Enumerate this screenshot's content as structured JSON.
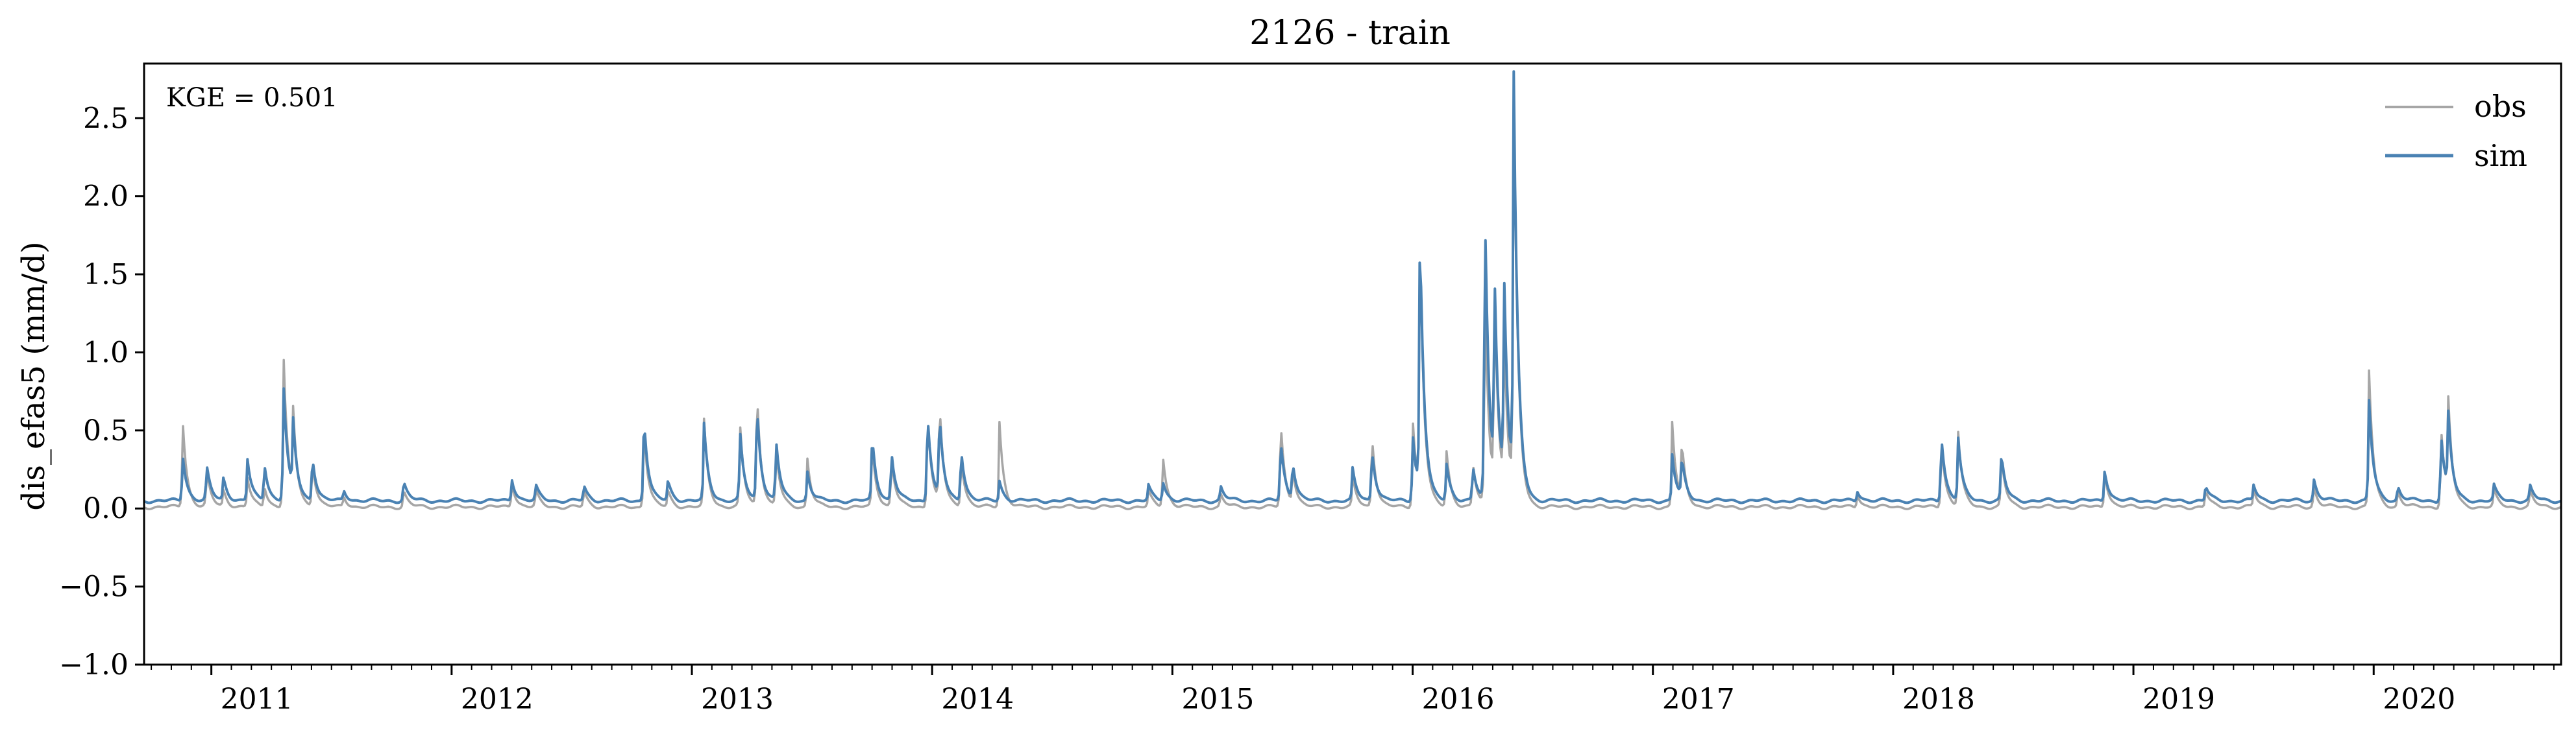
{
  "chart_data": {
    "type": "line",
    "title": "2126 - train",
    "xlabel": "",
    "ylabel": "dis_efas5 (mm/d)",
    "annotation": "KGE = 0.501",
    "xlim": [
      2010.72,
      2020.78
    ],
    "ylim": [
      -1.0,
      2.85
    ],
    "x_ticks": [
      2011,
      2012,
      2013,
      2014,
      2015,
      2016,
      2017,
      2018,
      2019,
      2020
    ],
    "x_tick_labels": [
      "2011",
      "2012",
      "2013",
      "2014",
      "2015",
      "2016",
      "2017",
      "2018",
      "2019",
      "2020"
    ],
    "y_ticks": [
      -1.0,
      -0.5,
      0.0,
      0.5,
      1.0,
      1.5,
      2.0,
      2.5
    ],
    "y_tick_labels": [
      "−1.0",
      "−0.5",
      "0.0",
      "0.5",
      "1.0",
      "1.5",
      "2.0",
      "2.5"
    ],
    "legend_position": "top-right",
    "series": [
      {
        "name": "obs",
        "color": "#a6a6a6",
        "baseline": 0.01,
        "peaks": [
          [
            2010.88,
            0.6
          ],
          [
            2010.98,
            0.25
          ],
          [
            2011.05,
            0.12
          ],
          [
            2011.15,
            0.2
          ],
          [
            2011.22,
            0.15
          ],
          [
            2011.3,
            1.02
          ],
          [
            2011.34,
            0.55
          ],
          [
            2011.42,
            0.32
          ],
          [
            2011.55,
            0.08
          ],
          [
            2011.8,
            0.12
          ],
          [
            2012.25,
            0.18
          ],
          [
            2012.35,
            0.12
          ],
          [
            2012.55,
            0.12
          ],
          [
            2012.8,
            0.55
          ],
          [
            2012.9,
            0.12
          ],
          [
            2013.05,
            0.58
          ],
          [
            2013.2,
            0.55
          ],
          [
            2013.27,
            0.79
          ],
          [
            2013.35,
            0.4
          ],
          [
            2013.48,
            0.34
          ],
          [
            2013.75,
            0.42
          ],
          [
            2013.83,
            0.35
          ],
          [
            2013.98,
            0.67
          ],
          [
            2014.03,
            0.67
          ],
          [
            2014.12,
            0.35
          ],
          [
            2014.28,
            0.56
          ],
          [
            2014.9,
            0.12
          ],
          [
            2014.96,
            0.35
          ],
          [
            2015.2,
            0.1
          ],
          [
            2015.45,
            0.59
          ],
          [
            2015.5,
            0.25
          ],
          [
            2015.75,
            0.2
          ],
          [
            2015.83,
            0.5
          ],
          [
            2016.0,
            0.6
          ],
          [
            2016.03,
            1.7
          ],
          [
            2016.14,
            0.39
          ],
          [
            2016.25,
            0.3
          ],
          [
            2016.3,
            1.45
          ],
          [
            2016.34,
            1.35
          ],
          [
            2016.38,
            1.05
          ],
          [
            2016.42,
            2.7
          ],
          [
            2017.08,
            0.56
          ],
          [
            2017.12,
            0.38
          ],
          [
            2017.85,
            0.1
          ],
          [
            2018.2,
            0.47
          ],
          [
            2018.27,
            0.5
          ],
          [
            2018.45,
            0.35
          ],
          [
            2018.88,
            0.25
          ],
          [
            2019.3,
            0.12
          ],
          [
            2019.5,
            0.12
          ],
          [
            2019.75,
            0.15
          ],
          [
            2019.98,
            0.92
          ],
          [
            2020.1,
            0.12
          ],
          [
            2020.28,
            0.55
          ],
          [
            2020.31,
            0.63
          ],
          [
            2020.5,
            0.12
          ],
          [
            2020.65,
            0.12
          ]
        ]
      },
      {
        "name": "sim",
        "color": "#4a82b3",
        "baseline": 0.05,
        "peaks": [
          [
            2010.88,
            0.36
          ],
          [
            2010.98,
            0.28
          ],
          [
            2011.05,
            0.2
          ],
          [
            2011.15,
            0.32
          ],
          [
            2011.22,
            0.3
          ],
          [
            2011.3,
            0.82
          ],
          [
            2011.34,
            0.5
          ],
          [
            2011.42,
            0.35
          ],
          [
            2011.55,
            0.12
          ],
          [
            2011.8,
            0.18
          ],
          [
            2012.25,
            0.2
          ],
          [
            2012.35,
            0.15
          ],
          [
            2012.55,
            0.15
          ],
          [
            2012.8,
            0.62
          ],
          [
            2012.9,
            0.18
          ],
          [
            2013.05,
            0.55
          ],
          [
            2013.2,
            0.5
          ],
          [
            2013.27,
            0.7
          ],
          [
            2013.35,
            0.45
          ],
          [
            2013.48,
            0.25
          ],
          [
            2013.75,
            0.48
          ],
          [
            2013.83,
            0.38
          ],
          [
            2013.98,
            0.66
          ],
          [
            2014.03,
            0.6
          ],
          [
            2014.12,
            0.4
          ],
          [
            2014.28,
            0.18
          ],
          [
            2014.9,
            0.15
          ],
          [
            2014.96,
            0.18
          ],
          [
            2015.2,
            0.15
          ],
          [
            2015.45,
            0.46
          ],
          [
            2015.5,
            0.3
          ],
          [
            2015.75,
            0.25
          ],
          [
            2015.83,
            0.4
          ],
          [
            2016.0,
            0.5
          ],
          [
            2016.03,
            1.78
          ],
          [
            2016.14,
            0.3
          ],
          [
            2016.25,
            0.28
          ],
          [
            2016.3,
            2.03
          ],
          [
            2016.34,
            1.4
          ],
          [
            2016.38,
            1.4
          ],
          [
            2016.42,
            2.73
          ],
          [
            2017.08,
            0.35
          ],
          [
            2017.12,
            0.3
          ],
          [
            2017.85,
            0.12
          ],
          [
            2018.2,
            0.5
          ],
          [
            2018.27,
            0.46
          ],
          [
            2018.45,
            0.36
          ],
          [
            2018.88,
            0.26
          ],
          [
            2019.3,
            0.15
          ],
          [
            2019.5,
            0.15
          ],
          [
            2019.75,
            0.2
          ],
          [
            2019.98,
            0.72
          ],
          [
            2020.1,
            0.15
          ],
          [
            2020.28,
            0.5
          ],
          [
            2020.31,
            0.55
          ],
          [
            2020.5,
            0.15
          ],
          [
            2020.65,
            0.15
          ]
        ]
      }
    ]
  }
}
